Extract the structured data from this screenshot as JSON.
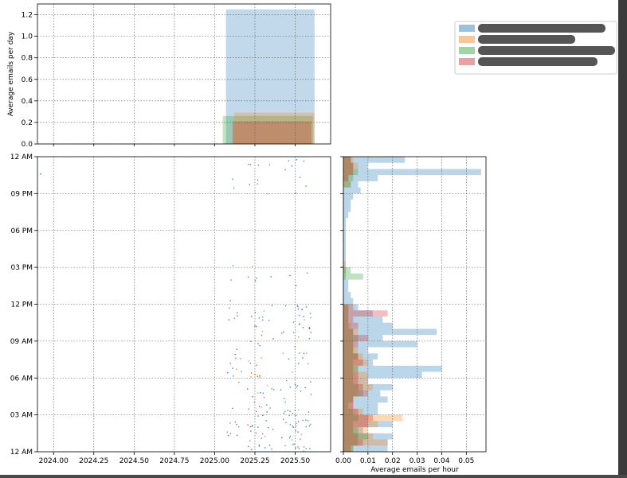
{
  "chart_data": [
    {
      "type": "bar",
      "panel": "top-histogram",
      "ylabel": "Average emails per day",
      "xlim": [
        2023.9,
        2025.72
      ],
      "ylim": [
        0,
        1.3
      ],
      "yticks": [
        "0.0",
        "0.2",
        "0.4",
        "0.6",
        "0.8",
        "1.0",
        "1.2"
      ],
      "grid": true,
      "bars": [
        {
          "series": 0,
          "x0": 2025.07,
          "x1": 2025.62,
          "value": 1.25
        },
        {
          "series": 2,
          "x0": 2025.05,
          "x1": 2025.61,
          "value": 0.26
        },
        {
          "series": 1,
          "x0": 2025.12,
          "x1": 2025.62,
          "value": 0.29
        },
        {
          "series": 3,
          "x0": 2025.11,
          "x1": 2025.6,
          "value": 0.21
        }
      ]
    },
    {
      "type": "scatter",
      "panel": "main-scatter",
      "xlim": [
        2023.9,
        2025.72
      ],
      "xticks": [
        "2024.00",
        "2024.25",
        "2024.50",
        "2024.75",
        "2025.00",
        "2025.25",
        "2025.50"
      ],
      "yticks": [
        "12 AM",
        "03 AM",
        "06 AM",
        "09 AM",
        "12 PM",
        "03 PM",
        "06 PM",
        "09 PM",
        "12 AM"
      ],
      "ylim_hours": [
        0,
        24
      ],
      "grid": true
    },
    {
      "type": "bar",
      "panel": "right-histogram",
      "orientation": "horizontal",
      "xlabel": "Average emails per hour",
      "xlim": [
        0,
        0.058
      ],
      "xticks": [
        "0.00",
        "0.01",
        "0.02",
        "0.03",
        "0.04",
        "0.05"
      ],
      "grid": true
    }
  ],
  "legend": {
    "placement": "top-right",
    "entries": [
      {
        "color": "#1f77b4"
      },
      {
        "color": "#ff7f0e"
      },
      {
        "color": "#2ca02c"
      },
      {
        "color": "#d62728"
      }
    ]
  }
}
